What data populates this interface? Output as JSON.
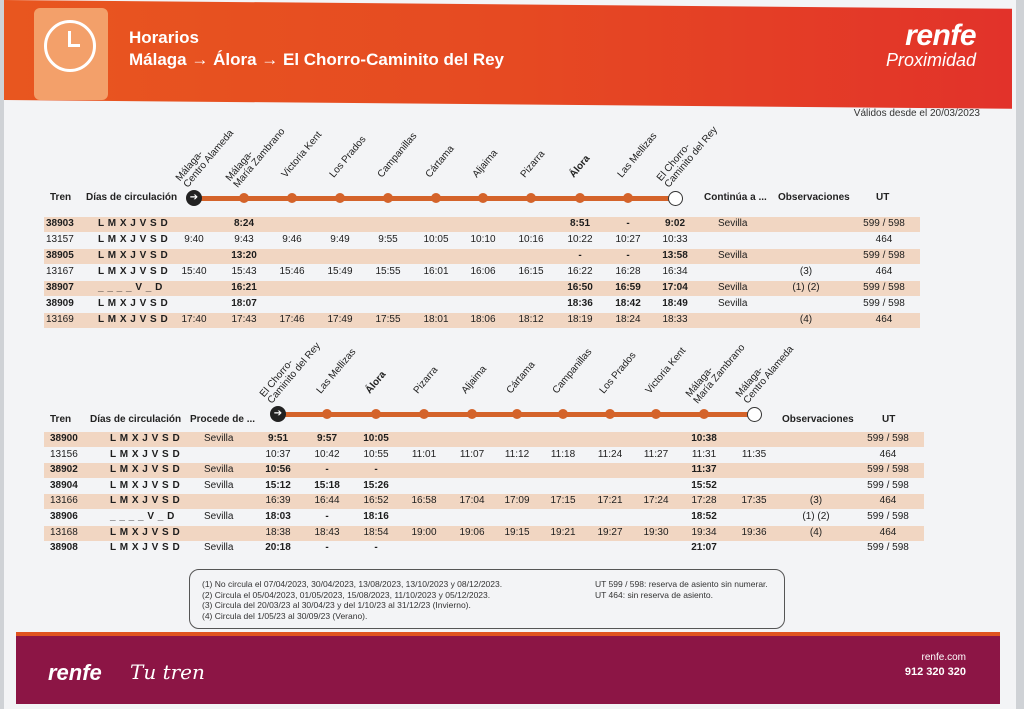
{
  "header": {
    "title": "Horarios",
    "route": "Málaga → Álora → El Chorro-Caminito del Rey",
    "logo_main": "renfe",
    "logo_sub": "Proximidad",
    "valid_from": "Válidos desde el 20/03/2023",
    "clock_icon": "clock-icon"
  },
  "table1": {
    "headers": {
      "tren": "Tren",
      "dias": "Días de circulación",
      "continua": "Continúa a ...",
      "obs": "Observaciones",
      "ut": "UT"
    },
    "stations": [
      "Málaga-\nCentro Alameda",
      "Málaga-\nMaría Zambrano",
      "Victoria Kent",
      "Los Prados",
      "Campanillas",
      "Cártama",
      "Aljaima",
      "Pizarra",
      "Álora",
      "Las Mellizas",
      "El Chorro-\nCaminito del Rey"
    ],
    "rows": [
      {
        "tren": "38903",
        "dias": "L M X J V S D",
        "times": [
          "",
          "8:24",
          "",
          "",
          "",
          "",
          "",
          "",
          "8:51",
          "-",
          "9:02"
        ],
        "continua": "Sevilla",
        "obs": "",
        "ut": "599 / 598",
        "hl": true
      },
      {
        "tren": "13157",
        "dias": "L M X J V S D",
        "times": [
          "9:40",
          "9:43",
          "9:46",
          "9:49",
          "9:55",
          "10:05",
          "10:10",
          "10:16",
          "10:22",
          "10:27",
          "10:33"
        ],
        "continua": "",
        "obs": "",
        "ut": "464",
        "hl": false
      },
      {
        "tren": "38905",
        "dias": "L M X J V S D",
        "times": [
          "",
          "13:20",
          "",
          "",
          "",
          "",
          "",
          "",
          "-",
          "-",
          "13:58"
        ],
        "continua": "Sevilla",
        "obs": "",
        "ut": "599 / 598",
        "hl": true
      },
      {
        "tren": "13167",
        "dias": "L M X J V S D",
        "times": [
          "15:40",
          "15:43",
          "15:46",
          "15:49",
          "15:55",
          "16:01",
          "16:06",
          "16:15",
          "16:22",
          "16:28",
          "16:34"
        ],
        "continua": "",
        "obs": "(3)",
        "ut": "464",
        "hl": false
      },
      {
        "tren": "38907",
        "dias": "_ _ _ _ V _ D",
        "times": [
          "",
          "16:21",
          "",
          "",
          "",
          "",
          "",
          "",
          "16:50",
          "16:59",
          "17:04"
        ],
        "continua": "Sevilla",
        "obs": "(1) (2)",
        "ut": "599 / 598",
        "hl": true
      },
      {
        "tren": "38909",
        "dias": "L M X J V S D",
        "times": [
          "",
          "18:07",
          "",
          "",
          "",
          "",
          "",
          "",
          "18:36",
          "18:42",
          "18:49"
        ],
        "continua": "Sevilla",
        "obs": "",
        "ut": "599 / 598",
        "hl": false
      },
      {
        "tren": "13169",
        "dias": "L M X J V S D",
        "times": [
          "17:40",
          "17:43",
          "17:46",
          "17:49",
          "17:55",
          "18:01",
          "18:06",
          "18:12",
          "18:19",
          "18:24",
          "18:33"
        ],
        "continua": "",
        "obs": "(4)",
        "ut": "464",
        "hl": true
      }
    ]
  },
  "table2": {
    "headers": {
      "tren": "Tren",
      "dias": "Días de circulación",
      "procede": "Procede de ...",
      "obs": "Observaciones",
      "ut": "UT"
    },
    "stations": [
      "El Chorro-\nCaminito del Rey",
      "Las Mellizas",
      "Álora",
      "Pizarra",
      "Aljaima",
      "Cártama",
      "Campanillas",
      "Los Prados",
      "Victoria Kent",
      "Málaga-\nMaría Zambrano",
      "Málaga-\nCentro Alameda"
    ],
    "rows": [
      {
        "tren": "38900",
        "dias": "L M X J V S D",
        "procede": "Sevilla",
        "times": [
          "9:51",
          "9:57",
          "10:05",
          "",
          "",
          "",
          "",
          "",
          "",
          "10:38",
          ""
        ],
        "obs": "",
        "ut": "599 / 598",
        "hl": true
      },
      {
        "tren": "13156",
        "dias": "L M X J V S D",
        "procede": "",
        "times": [
          "10:37",
          "10:42",
          "10:55",
          "11:01",
          "11:07",
          "11:12",
          "11:18",
          "11:24",
          "11:27",
          "11:31",
          "11:35"
        ],
        "obs": "",
        "ut": "464",
        "hl": false
      },
      {
        "tren": "38902",
        "dias": "L M X J V S D",
        "procede": "Sevilla",
        "times": [
          "10:56",
          "-",
          "-",
          "",
          "",
          "",
          "",
          "",
          "",
          "11:37",
          ""
        ],
        "obs": "",
        "ut": "599 / 598",
        "hl": true
      },
      {
        "tren": "38904",
        "dias": "L M X J V S D",
        "procede": "Sevilla",
        "times": [
          "15:12",
          "15:18",
          "15:26",
          "",
          "",
          "",
          "",
          "",
          "",
          "15:52",
          ""
        ],
        "obs": "",
        "ut": "599 / 598",
        "hl": false
      },
      {
        "tren": "13166",
        "dias": "L M X J V S D",
        "procede": "",
        "times": [
          "16:39",
          "16:44",
          "16:52",
          "16:58",
          "17:04",
          "17:09",
          "17:15",
          "17:21",
          "17:24",
          "17:28",
          "17:35"
        ],
        "obs": "(3)",
        "ut": "464",
        "hl": true
      },
      {
        "tren": "38906",
        "dias": "_ _ _ _ V _ D",
        "procede": "Sevilla",
        "times": [
          "18:03",
          "-",
          "18:16",
          "",
          "",
          "",
          "",
          "",
          "",
          "18:52",
          ""
        ],
        "obs": "(1) (2)",
        "ut": "599 / 598",
        "hl": false
      },
      {
        "tren": "13168",
        "dias": "L M X J V S D",
        "procede": "",
        "times": [
          "18:38",
          "18:43",
          "18:54",
          "19:00",
          "19:06",
          "19:15",
          "19:21",
          "19:27",
          "19:30",
          "19:34",
          "19:36"
        ],
        "obs": "(4)",
        "ut": "464",
        "hl": true
      },
      {
        "tren": "38908",
        "dias": "L M X J V S D",
        "procede": "Sevilla",
        "times": [
          "20:18",
          "-",
          "-",
          "",
          "",
          "",
          "",
          "",
          "",
          "21:07",
          ""
        ],
        "obs": "",
        "ut": "599 / 598",
        "hl": false
      }
    ]
  },
  "notes": {
    "left": [
      "(1)  No circula el 07/04/2023, 30/04/2023, 13/08/2023, 13/10/2023 y 08/12/2023.",
      "(2)  Circula el 05/04/2023, 01/05/2023, 15/08/2023, 11/10/2023 y 05/12/2023.",
      "(3)  Circula del 20/03/23 al 30/04/23 y del 1/10/23 al 31/12/23 (Invierno).",
      "(4)  Circula del 1/05/23 al 30/09/23 (Verano)."
    ],
    "right": [
      "UT 599 / 598: reserva de asiento sin numerar.",
      "UT 464: sin reserva de asiento."
    ]
  },
  "footer": {
    "logo": "renfe",
    "slogan": "Tu tren",
    "web": "renfe.com",
    "phone": "912 320 320"
  }
}
